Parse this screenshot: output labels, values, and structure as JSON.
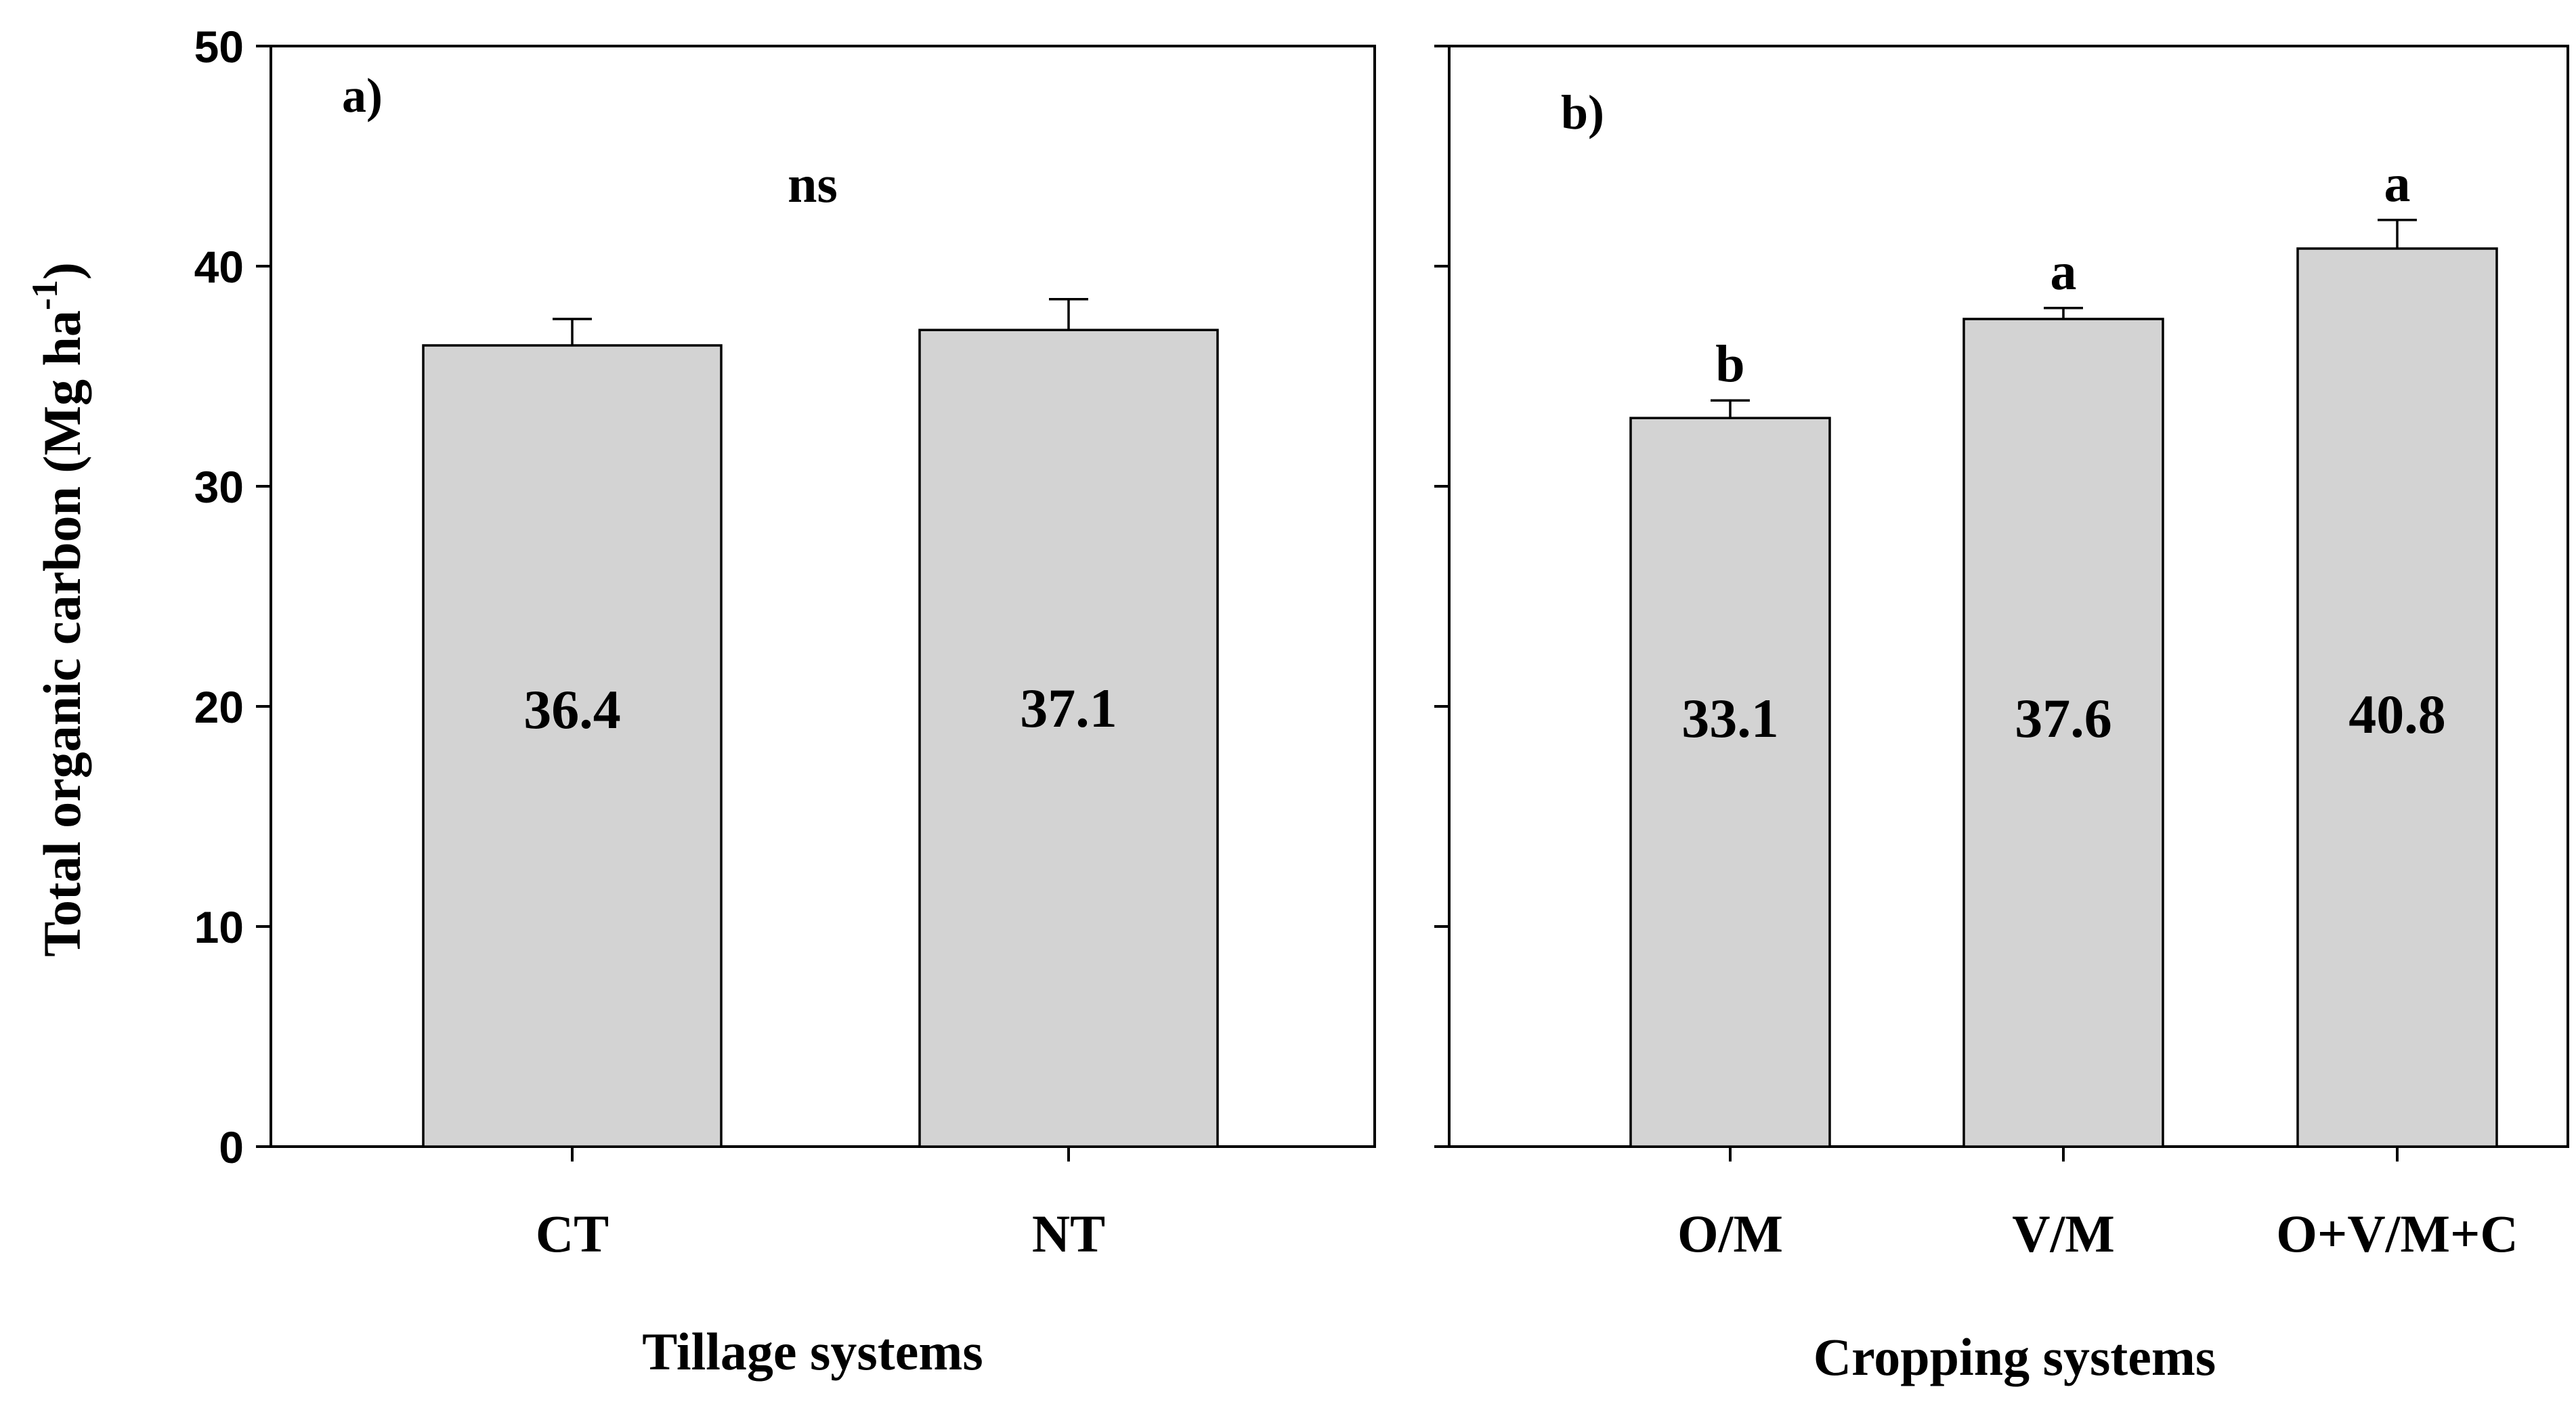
{
  "chart_data": [
    {
      "type": "bar",
      "panel_label": "a)",
      "categories": [
        "CT",
        "NT"
      ],
      "values": [
        36.4,
        37.1
      ],
      "value_labels": [
        "36.4",
        "37.1"
      ],
      "errors": [
        1.2,
        1.4
      ],
      "significance": "ns",
      "xlabel": "Tillage systems",
      "ylabel": "Total organic carbon (Mg ha",
      "ylabel_superscript": "-1",
      "ylabel_close": ")",
      "ylim": [
        0,
        50
      ],
      "yticks": [
        0,
        10,
        20,
        30,
        40,
        50
      ],
      "ytick_labels": [
        "0",
        "10",
        "20",
        "30",
        "40",
        "50"
      ],
      "bar_color": "#d3d3d3"
    },
    {
      "type": "bar",
      "panel_label": "b)",
      "categories": [
        "O/M",
        "V/M",
        "O+V/M+C"
      ],
      "values": [
        33.1,
        37.6,
        40.8
      ],
      "value_labels": [
        "33.1",
        "37.6",
        "40.8"
      ],
      "errors": [
        0.8,
        0.5,
        1.3
      ],
      "significance_letters": [
        "b",
        "a",
        "a"
      ],
      "xlabel": "Cropping systems",
      "ylim": [
        0,
        50
      ],
      "yticks": [
        0,
        10,
        20,
        30,
        40,
        50
      ],
      "bar_color": "#d3d3d3"
    }
  ]
}
